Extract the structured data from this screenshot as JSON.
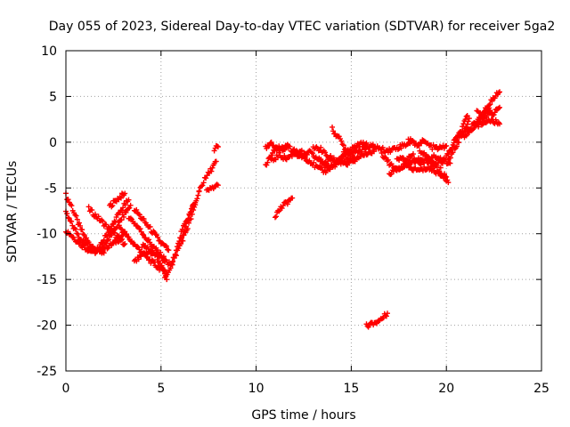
{
  "chart_data": {
    "type": "scatter",
    "title": "Day 055 of 2023, Sidereal Day-to-day VTEC variation (SDTVAR) for receiver 5ga2",
    "xlabel": "GPS time / hours",
    "ylabel": "SDTVAR / TECUs",
    "xlim": [
      0,
      25
    ],
    "ylim": [
      -25,
      10
    ],
    "x_ticks": [
      "0",
      "5",
      "10",
      "15",
      "20",
      "25"
    ],
    "y_ticks": [
      "-25",
      "-20",
      "-15",
      "-10",
      "-5",
      "0",
      "5",
      "10"
    ],
    "x_tick_values": [
      0,
      5,
      10,
      15,
      20,
      25
    ],
    "y_tick_values": [
      -25,
      -20,
      -15,
      -10,
      -5,
      0,
      5,
      10
    ],
    "grid": true,
    "marker": "plus",
    "color": "#ff0000",
    "series": [
      {
        "segments": [
          [
            [
              0.0,
              -5.8
            ],
            [
              0.3,
              -7.0
            ],
            [
              0.6,
              -8.6
            ],
            [
              0.9,
              -10.0
            ],
            [
              1.2,
              -11.0
            ],
            [
              1.6,
              -11.7
            ],
            [
              2.0,
              -12.1
            ]
          ],
          [
            [
              0.0,
              -7.8
            ],
            [
              0.4,
              -9.3
            ],
            [
              0.8,
              -10.6
            ],
            [
              1.2,
              -11.4
            ],
            [
              1.6,
              -11.9
            ]
          ],
          [
            [
              0.0,
              -9.6
            ],
            [
              0.4,
              -10.4
            ],
            [
              0.8,
              -11.2
            ],
            [
              1.2,
              -11.8
            ],
            [
              1.6,
              -12.0
            ],
            [
              2.0,
              -11.6
            ],
            [
              2.4,
              -11.2
            ],
            [
              2.8,
              -10.6
            ],
            [
              3.1,
              -9.8
            ]
          ],
          [
            [
              1.2,
              -7.3
            ],
            [
              1.6,
              -8.1
            ],
            [
              2.0,
              -8.9
            ],
            [
              2.4,
              -9.8
            ],
            [
              2.8,
              -10.5
            ],
            [
              3.1,
              -11.1
            ]
          ],
          [
            [
              1.7,
              -11.8
            ],
            [
              2.0,
              -10.6
            ],
            [
              2.4,
              -9.3
            ],
            [
              2.7,
              -8.1
            ],
            [
              3.0,
              -7.1
            ],
            [
              3.3,
              -6.3
            ]
          ],
          [
            [
              2.3,
              -7.0
            ],
            [
              2.6,
              -6.4
            ],
            [
              2.9,
              -5.9
            ],
            [
              3.1,
              -5.6
            ]
          ],
          [
            [
              1.9,
              -11.6
            ],
            [
              2.3,
              -10.4
            ],
            [
              2.7,
              -9.1
            ],
            [
              3.1,
              -7.8
            ],
            [
              3.4,
              -6.9
            ]
          ],
          [
            [
              2.8,
              -9.2
            ],
            [
              3.3,
              -10.5
            ],
            [
              3.8,
              -11.6
            ],
            [
              4.3,
              -12.7
            ],
            [
              4.8,
              -13.6
            ],
            [
              5.2,
              -14.1
            ]
          ],
          [
            [
              3.3,
              -8.1
            ],
            [
              3.8,
              -9.3
            ],
            [
              4.3,
              -10.7
            ],
            [
              4.8,
              -11.9
            ],
            [
              5.2,
              -12.8
            ]
          ],
          [
            [
              3.6,
              -7.3
            ],
            [
              4.1,
              -8.6
            ],
            [
              4.6,
              -9.9
            ],
            [
              5.0,
              -11.0
            ],
            [
              5.4,
              -11.8
            ]
          ],
          [
            [
              3.6,
              -13.1
            ],
            [
              4.0,
              -12.4
            ],
            [
              4.4,
              -12.0
            ],
            [
              4.8,
              -12.3
            ],
            [
              5.2,
              -13.0
            ],
            [
              5.6,
              -13.4
            ]
          ],
          [
            [
              4.0,
              -11.3
            ],
            [
              4.4,
              -11.8
            ],
            [
              4.8,
              -12.6
            ],
            [
              5.1,
              -13.9
            ],
            [
              5.3,
              -15.0
            ]
          ],
          [
            [
              5.2,
              -14.8
            ],
            [
              5.5,
              -13.6
            ],
            [
              5.8,
              -12.2
            ],
            [
              6.1,
              -10.8
            ],
            [
              6.4,
              -9.3
            ],
            [
              6.7,
              -7.6
            ],
            [
              6.9,
              -6.1
            ],
            [
              7.0,
              -5.4
            ]
          ],
          [
            [
              5.6,
              -13.0
            ],
            [
              5.9,
              -11.3
            ],
            [
              6.2,
              -9.6
            ],
            [
              6.5,
              -8.1
            ],
            [
              6.7,
              -6.8
            ]
          ],
          [
            [
              6.0,
              -10.2
            ],
            [
              6.3,
              -8.8
            ],
            [
              6.6,
              -7.4
            ],
            [
              6.8,
              -6.6
            ]
          ],
          [
            [
              7.0,
              -5.2
            ],
            [
              7.3,
              -4.1
            ],
            [
              7.6,
              -3.1
            ],
            [
              7.9,
              -2.1
            ]
          ],
          [
            [
              7.4,
              -5.4
            ],
            [
              7.7,
              -5.0
            ],
            [
              8.0,
              -4.7
            ]
          ],
          [
            [
              7.8,
              -0.7
            ],
            [
              8.0,
              -0.5
            ]
          ],
          [
            [
              10.5,
              -2.6
            ],
            [
              10.8,
              -1.4
            ],
            [
              11.1,
              -0.6
            ],
            [
              11.4,
              -0.8
            ],
            [
              11.7,
              -0.4
            ]
          ],
          [
            [
              10.5,
              -0.7
            ],
            [
              10.8,
              -0.2
            ],
            [
              11.2,
              -0.8
            ],
            [
              11.6,
              -0.4
            ],
            [
              12.0,
              -1.0
            ],
            [
              12.4,
              -0.9
            ]
          ],
          [
            [
              11.0,
              -8.0
            ],
            [
              11.3,
              -7.2
            ],
            [
              11.6,
              -6.6
            ],
            [
              11.9,
              -6.1
            ]
          ],
          [
            [
              10.8,
              -2.1
            ],
            [
              11.2,
              -1.4
            ],
            [
              11.6,
              -1.8
            ],
            [
              12.0,
              -1.2
            ],
            [
              12.4,
              -1.6
            ],
            [
              12.8,
              -1.1
            ],
            [
              13.2,
              -1.8
            ],
            [
              13.6,
              -2.3
            ],
            [
              14.0,
              -1.8
            ]
          ],
          [
            [
              12.4,
              -1.5
            ],
            [
              12.8,
              -2.0
            ],
            [
              13.2,
              -2.8
            ],
            [
              13.6,
              -3.2
            ],
            [
              14.0,
              -2.6
            ],
            [
              14.4,
              -2.1
            ],
            [
              14.8,
              -2.5
            ],
            [
              15.2,
              -1.8
            ]
          ],
          [
            [
              13.0,
              -0.6
            ],
            [
              13.4,
              -0.8
            ],
            [
              13.8,
              -1.6
            ],
            [
              14.2,
              -2.0
            ],
            [
              14.6,
              -1.4
            ],
            [
              15.0,
              -0.8
            ],
            [
              15.4,
              -0.3
            ],
            [
              15.8,
              -0.1
            ]
          ],
          [
            [
              13.4,
              -2.1
            ],
            [
              13.8,
              -2.8
            ],
            [
              14.2,
              -2.4
            ],
            [
              14.6,
              -1.8
            ],
            [
              15.0,
              -2.0
            ],
            [
              15.4,
              -1.6
            ],
            [
              15.8,
              -1.2
            ],
            [
              16.2,
              -1.0
            ]
          ],
          [
            [
              14.0,
              1.4
            ],
            [
              14.3,
              0.6
            ],
            [
              14.6,
              -0.4
            ],
            [
              14.9,
              -1.4
            ],
            [
              15.2,
              -2.1
            ]
          ],
          [
            [
              14.6,
              -1.0
            ],
            [
              15.0,
              -1.4
            ],
            [
              15.4,
              -0.9
            ],
            [
              15.8,
              -0.6
            ],
            [
              16.2,
              -0.4
            ],
            [
              16.6,
              -0.8
            ],
            [
              17.0,
              -0.9
            ],
            [
              17.4,
              -0.6
            ],
            [
              17.8,
              -0.3
            ],
            [
              18.2,
              0.1
            ]
          ],
          [
            [
              15.8,
              -20.1
            ],
            [
              16.1,
              -19.8
            ],
            [
              16.4,
              -19.6
            ],
            [
              16.7,
              -19.1
            ],
            [
              16.9,
              -18.7
            ]
          ],
          [
            [
              16.6,
              -1.2
            ],
            [
              17.0,
              -2.3
            ],
            [
              17.4,
              -2.9
            ],
            [
              17.8,
              -2.6
            ],
            [
              18.2,
              -2.1
            ],
            [
              18.6,
              -1.8
            ],
            [
              19.0,
              -2.2
            ],
            [
              19.4,
              -2.5
            ],
            [
              19.8,
              -2.1
            ]
          ],
          [
            [
              17.0,
              -3.4
            ],
            [
              17.4,
              -3.0
            ],
            [
              17.8,
              -2.5
            ],
            [
              18.2,
              -2.9
            ],
            [
              18.6,
              -3.1
            ],
            [
              19.0,
              -2.8
            ],
            [
              19.4,
              -3.2
            ],
            [
              19.8,
              -3.6
            ],
            [
              20.0,
              -3.8
            ]
          ],
          [
            [
              17.4,
              -1.6
            ],
            [
              17.8,
              -2.0
            ],
            [
              18.2,
              -1.4
            ],
            [
              18.6,
              -2.3
            ],
            [
              19.0,
              -1.8
            ],
            [
              19.4,
              -1.5
            ],
            [
              19.8,
              -1.9
            ],
            [
              20.2,
              -2.3
            ]
          ],
          [
            [
              18.6,
              -1.0
            ],
            [
              19.0,
              -1.6
            ],
            [
              19.4,
              -2.6
            ],
            [
              19.8,
              -3.6
            ],
            [
              20.1,
              -4.4
            ]
          ],
          [
            [
              18.0,
              0.3
            ],
            [
              18.4,
              -0.3
            ],
            [
              18.8,
              0.1
            ],
            [
              19.2,
              -0.5
            ],
            [
              19.6,
              -0.7
            ],
            [
              20.0,
              -0.4
            ]
          ],
          [
            [
              19.7,
              -2.6
            ],
            [
              20.0,
              -1.6
            ],
            [
              20.3,
              -0.6
            ],
            [
              20.6,
              0.6
            ],
            [
              20.9,
              1.8
            ],
            [
              21.1,
              2.9
            ]
          ],
          [
            [
              20.1,
              -2.0
            ],
            [
              20.4,
              -0.8
            ],
            [
              20.7,
              0.4
            ],
            [
              21.0,
              1.6
            ],
            [
              21.2,
              2.6
            ]
          ],
          [
            [
              20.4,
              0.1
            ],
            [
              20.7,
              0.9
            ],
            [
              21.0,
              0.7
            ],
            [
              21.3,
              1.6
            ],
            [
              21.6,
              2.4
            ],
            [
              22.0,
              2.7
            ],
            [
              22.4,
              3.1
            ]
          ],
          [
            [
              21.0,
              1.2
            ],
            [
              21.4,
              1.6
            ],
            [
              21.8,
              2.0
            ],
            [
              22.2,
              2.4
            ],
            [
              22.6,
              2.2
            ],
            [
              22.8,
              2.0
            ]
          ],
          [
            [
              21.6,
              3.5
            ],
            [
              21.9,
              3.0
            ],
            [
              22.2,
              3.6
            ],
            [
              22.5,
              3.1
            ],
            [
              22.8,
              3.8
            ]
          ],
          [
            [
              21.6,
              2.2
            ],
            [
              21.9,
              3.0
            ],
            [
              22.2,
              4.0
            ],
            [
              22.5,
              4.9
            ],
            [
              22.8,
              5.5
            ]
          ]
        ]
      }
    ]
  }
}
